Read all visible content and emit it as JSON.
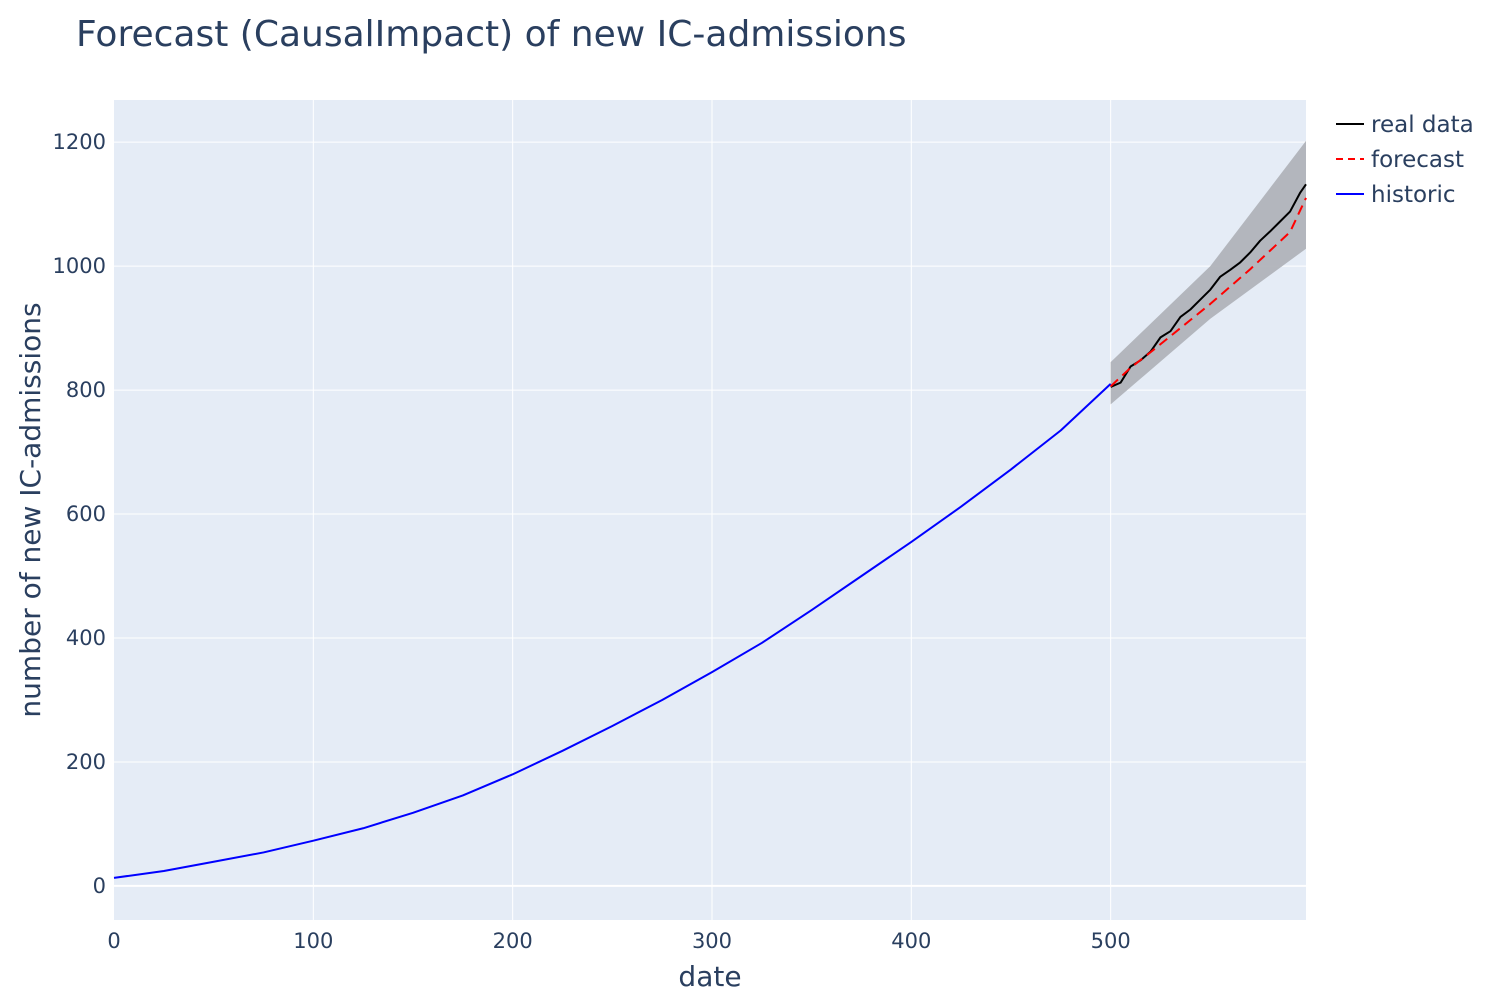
{
  "chart_data": {
    "type": "line",
    "title": "Forecast (CausalImpact) of new IC-admissions",
    "xlabel": "date",
    "ylabel": "number of new IC-admissions",
    "xlim": [
      0,
      598
    ],
    "ylim": [
      -55,
      1268
    ],
    "xticks": [
      0,
      100,
      200,
      300,
      400,
      500
    ],
    "yticks": [
      0,
      200,
      400,
      600,
      800,
      1000,
      1200
    ],
    "grid": true,
    "legend_position": "top-right, outside plot",
    "background": "#e5ecf6",
    "series": [
      {
        "name": "real data",
        "color": "#000000",
        "dash": "solid",
        "x": [
          500,
          505,
          510,
          515,
          520,
          525,
          530,
          535,
          540,
          545,
          550,
          555,
          560,
          565,
          570,
          575,
          580,
          585,
          590,
          595,
          598
        ],
        "y": [
          805,
          812,
          838,
          848,
          862,
          885,
          895,
          918,
          930,
          946,
          962,
          983,
          994,
          1006,
          1022,
          1041,
          1056,
          1072,
          1088,
          1118,
          1132
        ]
      },
      {
        "name": "forecast",
        "color": "#ff0000",
        "dash": "dash",
        "x": [
          500,
          510,
          520,
          530,
          540,
          550,
          560,
          570,
          580,
          590,
          598
        ],
        "y": [
          806,
          836,
          861,
          887,
          913,
          939,
          967,
          995,
          1025,
          1055,
          1110
        ]
      },
      {
        "name": "historic",
        "color": "#0000ff",
        "dash": "solid",
        "x": [
          0,
          25,
          50,
          75,
          100,
          125,
          150,
          175,
          200,
          225,
          250,
          275,
          300,
          325,
          350,
          375,
          400,
          425,
          450,
          475,
          500
        ],
        "y": [
          13,
          24,
          39,
          54,
          73,
          93,
          118,
          146,
          180,
          218,
          258,
          300,
          345,
          392,
          445,
          500,
          555,
          612,
          672,
          735,
          810
        ]
      }
    ],
    "confidence_band": {
      "color": "#b0b3b9",
      "x": [
        500,
        550,
        598
      ],
      "lower": [
        777,
        915,
        1028
      ],
      "upper": [
        845,
        1000,
        1202
      ]
    }
  }
}
